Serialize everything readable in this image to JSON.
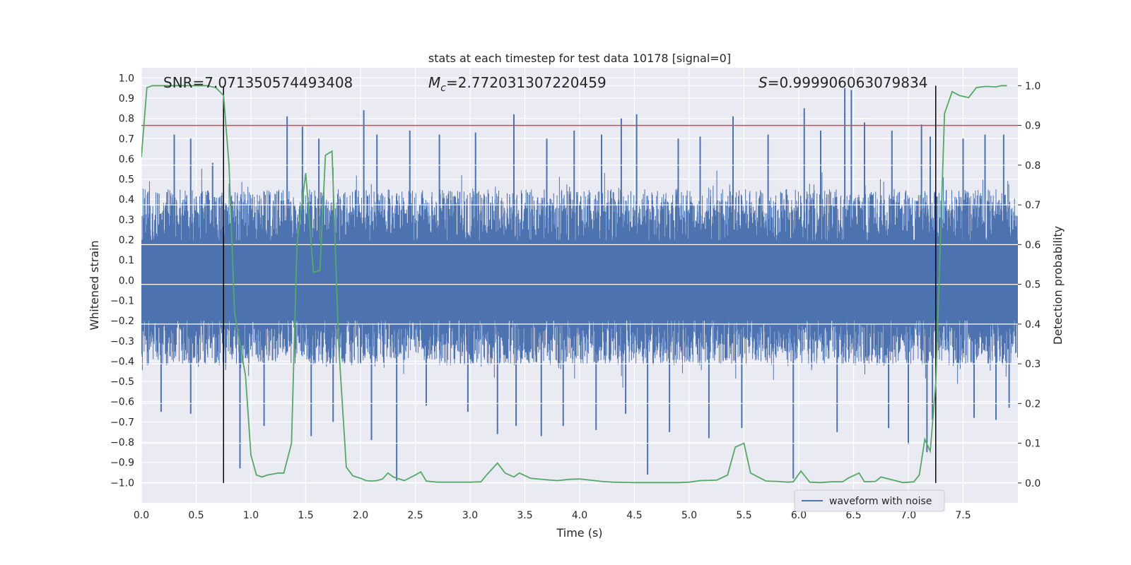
{
  "chart_data": {
    "type": "line",
    "title": "stats at each timestep for test data 10178 [signal=0]",
    "xlabel": "Time (s)",
    "ylabel_left": "Whitened strain",
    "ylabel_right": "Detection probability",
    "xlim": [
      0.0,
      8.0
    ],
    "ylim_left": [
      -1.1,
      1.05
    ],
    "ylim_right": [
      -0.05,
      1.045
    ],
    "x_ticks": [
      "0.0",
      "0.5",
      "1.0",
      "1.5",
      "2.0",
      "2.5",
      "3.0",
      "3.5",
      "4.0",
      "4.5",
      "5.0",
      "5.5",
      "6.0",
      "6.5",
      "7.0",
      "7.5"
    ],
    "y_ticks_left": [
      "1.0",
      "0.9",
      "0.8",
      "0.7",
      "0.6",
      "0.5",
      "0.4",
      "0.3",
      "0.2",
      "0.1",
      "0.0",
      "-0.1",
      "-0.2",
      "-0.3",
      "-0.4",
      "-0.5",
      "-0.6",
      "-0.7",
      "-0.8",
      "-0.9",
      "-1.0"
    ],
    "y_ticks_right": [
      "1.0",
      "0.9",
      "0.8",
      "0.7",
      "0.6",
      "0.5",
      "0.4",
      "0.3",
      "0.2",
      "0.1",
      "0.0"
    ],
    "grid": true,
    "annotations": {
      "snr": "SNR=7.071350574493408",
      "mc_symbol": "M",
      "mc_sub": "c",
      "mc_value": "=2.772031307220459",
      "s_symbol": "S",
      "s_value": "=0.999906063079834"
    },
    "threshold": {
      "value": 0.9,
      "axis": "right",
      "color": "#c44e52"
    },
    "vlines": [
      0.75,
      7.25
    ],
    "legend": {
      "placement": "lower-right",
      "entries": [
        "waveform with noise"
      ]
    },
    "waveform": {
      "name": "waveform with noise",
      "color": "#4c72b0",
      "envelope_upper": 0.45,
      "envelope_lower": -0.42,
      "spikes_up": [
        [
          0.3,
          0.72
        ],
        [
          0.45,
          0.7
        ],
        [
          0.65,
          0.58
        ],
        [
          1.33,
          0.81
        ],
        [
          1.47,
          0.76
        ],
        [
          1.62,
          0.7
        ],
        [
          2.03,
          0.84
        ],
        [
          2.15,
          0.72
        ],
        [
          2.45,
          0.74
        ],
        [
          2.72,
          0.72
        ],
        [
          3.05,
          0.73
        ],
        [
          3.4,
          0.82
        ],
        [
          3.7,
          0.7
        ],
        [
          3.95,
          0.74
        ],
        [
          4.2,
          0.72
        ],
        [
          4.38,
          0.8
        ],
        [
          4.52,
          0.82
        ],
        [
          4.9,
          0.7
        ],
        [
          5.1,
          0.71
        ],
        [
          5.4,
          0.81
        ],
        [
          5.72,
          0.72
        ],
        [
          6.05,
          0.85
        ],
        [
          6.2,
          0.74
        ],
        [
          6.42,
          0.95
        ],
        [
          6.48,
          0.94
        ],
        [
          6.6,
          0.78
        ],
        [
          6.85,
          0.74
        ],
        [
          7.12,
          0.77
        ],
        [
          7.2,
          0.71
        ],
        [
          7.5,
          0.7
        ],
        [
          7.7,
          0.72
        ],
        [
          7.87,
          0.72
        ]
      ],
      "spikes_down": [
        [
          0.18,
          -0.65
        ],
        [
          0.45,
          -0.66
        ],
        [
          0.9,
          -0.93
        ],
        [
          1.12,
          -0.72
        ],
        [
          1.55,
          -0.77
        ],
        [
          1.75,
          -0.7
        ],
        [
          2.1,
          -0.79
        ],
        [
          2.33,
          -0.99
        ],
        [
          2.6,
          -0.62
        ],
        [
          2.98,
          -0.65
        ],
        [
          3.25,
          -0.76
        ],
        [
          3.42,
          -0.72
        ],
        [
          3.65,
          -0.77
        ],
        [
          3.85,
          -0.72
        ],
        [
          4.15,
          -0.74
        ],
        [
          4.42,
          -0.66
        ],
        [
          4.62,
          -0.96
        ],
        [
          4.82,
          -0.75
        ],
        [
          5.18,
          -0.78
        ],
        [
          5.48,
          -0.73
        ],
        [
          5.95,
          -0.98
        ],
        [
          6.35,
          -0.75
        ],
        [
          6.82,
          -0.73
        ],
        [
          7.0,
          -0.81
        ],
        [
          7.17,
          -0.85
        ],
        [
          7.22,
          -0.69
        ],
        [
          7.6,
          -0.68
        ],
        [
          7.8,
          -0.69
        ],
        [
          7.92,
          -0.63
        ]
      ]
    },
    "probability": {
      "name": "detection probability",
      "color": "#55a868",
      "x": [
        0.0,
        0.05,
        0.1,
        0.2,
        0.3,
        0.4,
        0.5,
        0.6,
        0.68,
        0.75,
        0.8,
        0.85,
        0.9,
        0.95,
        1.0,
        1.05,
        1.1,
        1.15,
        1.25,
        1.3,
        1.37,
        1.42,
        1.5,
        1.57,
        1.63,
        1.68,
        1.74,
        1.8,
        1.87,
        1.93,
        2.0,
        2.05,
        2.1,
        2.15,
        2.2,
        2.25,
        2.3,
        2.4,
        2.5,
        2.55,
        2.6,
        2.7,
        2.8,
        2.9,
        3.0,
        3.1,
        3.15,
        3.25,
        3.32,
        3.4,
        3.45,
        3.55,
        3.7,
        3.8,
        3.9,
        4.0,
        4.1,
        4.2,
        4.3,
        4.5,
        4.7,
        4.9,
        5.0,
        5.1,
        5.25,
        5.35,
        5.42,
        5.5,
        5.56,
        5.7,
        5.8,
        5.9,
        5.95,
        6.02,
        6.1,
        6.2,
        6.3,
        6.4,
        6.45,
        6.55,
        6.6,
        6.7,
        6.75,
        6.85,
        6.95,
        7.05,
        7.1,
        7.15,
        7.2,
        7.25,
        7.33,
        7.4,
        7.47,
        7.55,
        7.62,
        7.7,
        7.8,
        7.85,
        7.9
      ],
      "y": [
        0.82,
        0.995,
        1.0,
        1.0,
        1.0,
        1.0,
        1.0,
        1.0,
        0.995,
        0.975,
        0.8,
        0.43,
        0.35,
        0.27,
        0.07,
        0.02,
        0.015,
        0.02,
        0.025,
        0.025,
        0.1,
        0.6,
        0.78,
        0.53,
        0.535,
        0.825,
        0.835,
        0.35,
        0.04,
        0.018,
        0.012,
        0.006,
        0.005,
        0.006,
        0.01,
        0.025,
        0.015,
        0.006,
        0.02,
        0.028,
        0.005,
        0.002,
        0.002,
        0.002,
        0.002,
        0.003,
        0.02,
        0.05,
        0.025,
        0.015,
        0.025,
        0.012,
        0.008,
        0.006,
        0.009,
        0.01,
        0.007,
        0.004,
        0.002,
        0.001,
        0.001,
        0.001,
        0.002,
        0.006,
        0.007,
        0.02,
        0.09,
        0.1,
        0.025,
        0.005,
        0.004,
        0.002,
        0.003,
        0.03,
        0.002,
        0.001,
        0.003,
        0.003,
        0.012,
        0.025,
        0.003,
        0.004,
        0.015,
        0.008,
        0.001,
        0.003,
        0.02,
        0.11,
        0.08,
        0.25,
        0.93,
        0.985,
        0.975,
        0.97,
        0.995,
        0.998,
        0.997,
        1.0,
        1.0
      ]
    }
  }
}
